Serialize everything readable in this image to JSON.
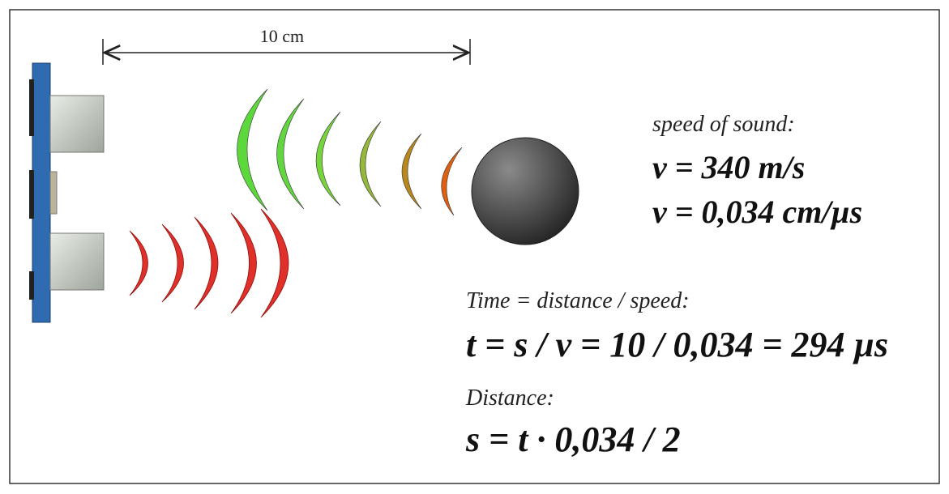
{
  "dimension": {
    "label": "10 cm"
  },
  "formulas": [
    {
      "caption": "speed of sound:",
      "lines": [
        "v = 340 m/s",
        "v = 0,034 cm/µs"
      ]
    },
    {
      "caption": "Time = distance / speed:",
      "lines": [
        "t = s / v = 10 / 0,034 = 294 µs"
      ]
    },
    {
      "caption": "Distance:",
      "lines": [
        "s = t · 0,034 / 2"
      ]
    }
  ]
}
